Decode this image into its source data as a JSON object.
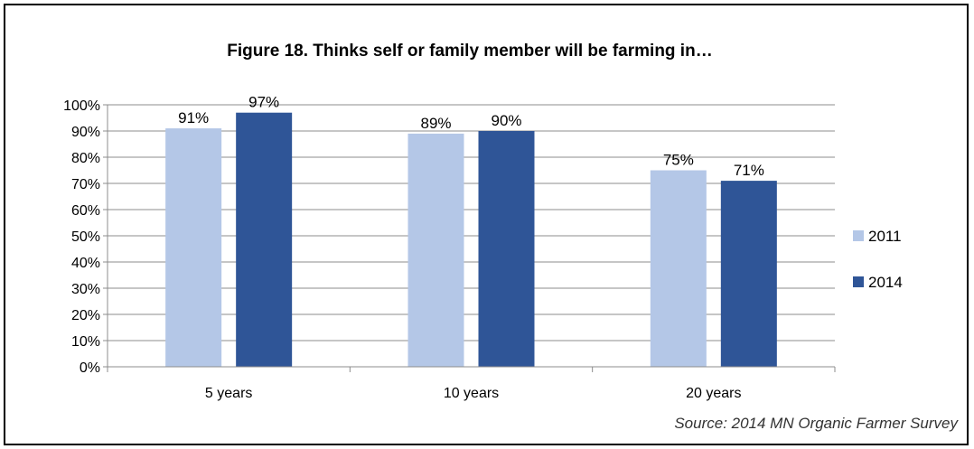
{
  "chart_data": {
    "type": "bar",
    "title": "Figure 18. Thinks self or family member will be farming in…",
    "categories": [
      "5 years",
      "10 years",
      "20 years"
    ],
    "series": [
      {
        "name": "2011",
        "values": [
          91,
          89,
          75
        ],
        "labels": [
          "91%",
          "89%",
          "75%"
        ],
        "color": "#b4c7e7"
      },
      {
        "name": "2014",
        "values": [
          97,
          90,
          71
        ],
        "labels": [
          "97%",
          "90%",
          "71%"
        ],
        "color": "#2f5597"
      }
    ],
    "ylim": [
      0,
      100
    ],
    "yticks": [
      "0%",
      "10%",
      "20%",
      "30%",
      "40%",
      "50%",
      "60%",
      "70%",
      "80%",
      "90%",
      "100%"
    ],
    "xlabel": "",
    "ylabel": "",
    "grid": true,
    "legend_position": "right",
    "source": "Source: 2014 MN Organic Farmer Survey"
  }
}
